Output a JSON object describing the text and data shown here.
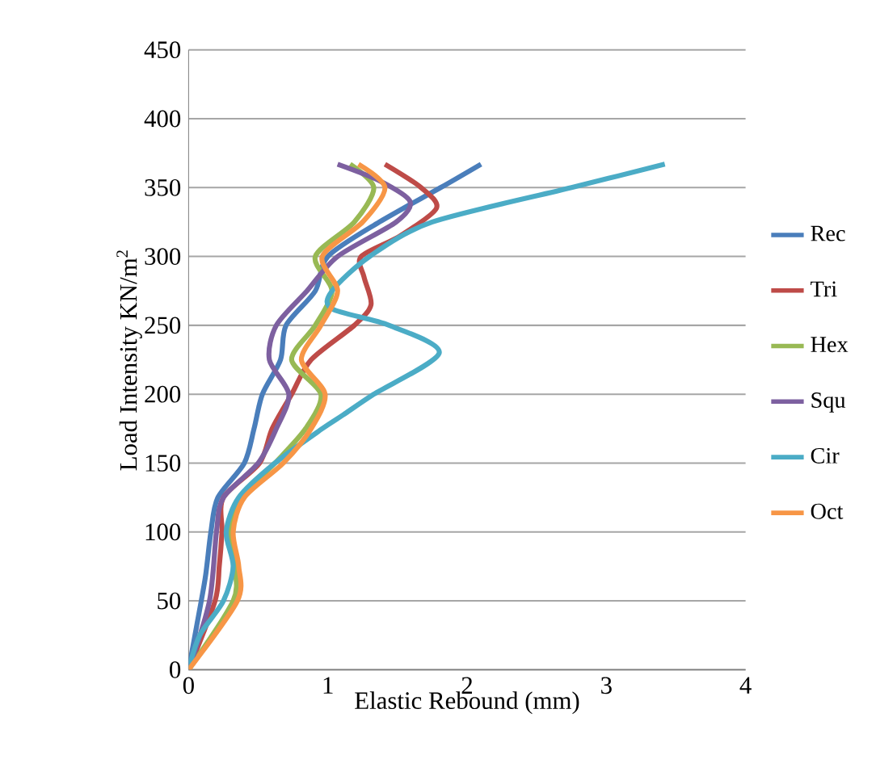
{
  "chart_data": {
    "type": "line",
    "xlabel": "Elastic Rebound (mm)",
    "ylabel": "Load Intensity KN/m$^{2}$",
    "xlim": [
      0,
      4
    ],
    "xticks": [
      0,
      1,
      2,
      3,
      4
    ],
    "ylim": [
      0,
      450
    ],
    "yticks": [
      0,
      50,
      100,
      150,
      200,
      250,
      300,
      350,
      400,
      450
    ],
    "grid": "y",
    "legend": "right",
    "marker": "none",
    "line_style": "solid",
    "series": [
      {
        "name": "Rec",
        "color": "#4a7ebb",
        "x": [
          0,
          0.06,
          0.12,
          0.16,
          0.21,
          0.4,
          0.47,
          0.53,
          0.66,
          0.7,
          0.91,
          1.0,
          1.37,
          1.81,
          2.1
        ],
        "values": [
          0,
          33,
          67,
          100,
          125,
          150,
          175,
          200,
          225,
          250,
          275,
          300,
          325,
          350,
          367
        ]
      },
      {
        "name": "Tri",
        "color": "#be4b48",
        "x": [
          0,
          0.19,
          0.22,
          0.24,
          0.25,
          0.51,
          0.6,
          0.74,
          0.88,
          1.19,
          1.31,
          1.26,
          1.24,
          1.52,
          1.78,
          1.67,
          1.41
        ],
        "values": [
          0,
          50,
          75,
          100,
          125,
          150,
          175,
          200,
          225,
          250,
          265,
          285,
          300,
          315,
          335,
          350,
          367
        ]
      },
      {
        "name": "Hex",
        "color": "#98b954",
        "x": [
          0,
          0.32,
          0.33,
          0.3,
          0.38,
          0.62,
          0.84,
          0.95,
          0.74,
          0.91,
          1.03,
          0.91,
          1.19,
          1.33,
          1.16
        ],
        "values": [
          0,
          50,
          75,
          100,
          125,
          150,
          175,
          200,
          225,
          250,
          275,
          300,
          325,
          350,
          367
        ]
      },
      {
        "name": "Squ",
        "color": "#7d60a0",
        "x": [
          0,
          0.15,
          0.2,
          0.25,
          0.5,
          0.63,
          0.72,
          0.58,
          0.63,
          0.85,
          1.07,
          1.49,
          1.59,
          1.37,
          1.07
        ],
        "values": [
          0,
          50,
          100,
          125,
          150,
          175,
          200,
          225,
          250,
          275,
          300,
          325,
          340,
          355,
          367
        ]
      },
      {
        "name": "Cir",
        "color": "#4bacc6",
        "x": [
          0,
          0.08,
          0.25,
          0.32,
          0.27,
          0.36,
          0.62,
          0.96,
          1.11,
          1.33,
          1.8,
          1.44,
          1.03,
          1.03,
          1.3,
          1.75,
          2.75,
          3.42
        ],
        "values": [
          0,
          25,
          50,
          75,
          100,
          125,
          150,
          175,
          185,
          200,
          230,
          250,
          262,
          275,
          300,
          325,
          350,
          367
        ]
      },
      {
        "name": "Oct",
        "color": "#f79646",
        "x": [
          0,
          0.35,
          0.36,
          0.32,
          0.4,
          0.68,
          0.88,
          0.98,
          0.81,
          0.95,
          1.07,
          0.96,
          1.25,
          1.41,
          1.22
        ],
        "values": [
          0,
          50,
          75,
          100,
          125,
          150,
          175,
          200,
          225,
          250,
          275,
          300,
          325,
          350,
          367
        ]
      }
    ]
  }
}
